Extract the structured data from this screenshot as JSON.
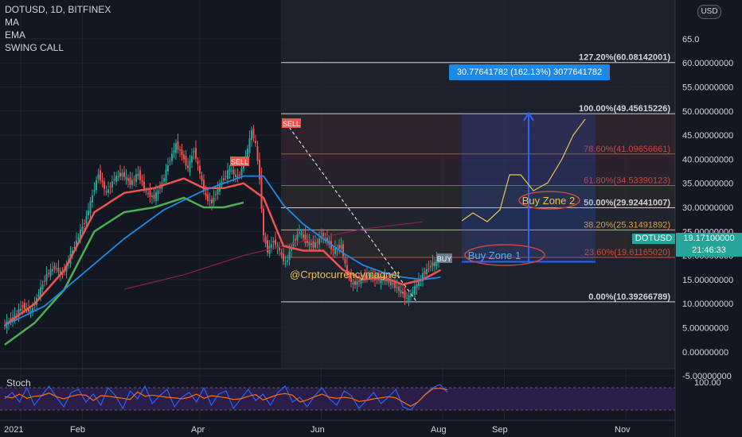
{
  "legend": {
    "symbol": "DOTUSD, 1D, BITFINEX",
    "indicator_1": "MA",
    "indicator_2": "EMA",
    "indicator_3": "SWING CALL"
  },
  "currency_button": "USD",
  "watermark": "@Crptocurrencymagnet",
  "current_price": {
    "symbol": "DOTUSD",
    "value": "19.17100000",
    "countdown": "21:46:33"
  },
  "measure_label": "30.77641782 (162.13%) 3077641782",
  "stoch_label": "Stoch",
  "chart_data": {
    "type": "candlestick",
    "y_axis": {
      "ticks": [
        65,
        60,
        55,
        50,
        45,
        40,
        35,
        30,
        25,
        20,
        15,
        10,
        5,
        0,
        -5
      ],
      "tick_labels": [
        "65.0",
        "60.00000000",
        "55.00000000",
        "50.00000000",
        "45.00000000",
        "40.00000000",
        "35.00000000",
        "30.00000000",
        "25.00000000",
        "20.00000000",
        "15.00000000",
        "10.00000000",
        "5.00000000",
        "0.00000000",
        "-5.00000000"
      ]
    },
    "x_axis": {
      "tick_labels": [
        "2021",
        "Feb",
        "Apr",
        "Jun",
        "Aug",
        "Sep",
        "Nov"
      ],
      "tick_days": [
        0,
        31,
        90,
        151,
        212,
        243,
        304
      ]
    },
    "stoch_axis": {
      "tick_labels": [
        "100.00"
      ]
    },
    "price_series": [
      [
        0,
        5.2
      ],
      [
        5,
        7
      ],
      [
        10,
        9.5
      ],
      [
        14,
        8.2
      ],
      [
        18,
        12
      ],
      [
        22,
        16
      ],
      [
        26,
        17.5
      ],
      [
        30,
        16
      ],
      [
        34,
        20
      ],
      [
        38,
        24
      ],
      [
        42,
        28
      ],
      [
        46,
        34
      ],
      [
        48,
        37
      ],
      [
        52,
        33
      ],
      [
        56,
        36
      ],
      [
        60,
        37
      ],
      [
        64,
        35
      ],
      [
        68,
        37
      ],
      [
        72,
        33
      ],
      [
        76,
        32
      ],
      [
        80,
        35
      ],
      [
        84,
        40
      ],
      [
        87,
        43
      ],
      [
        90,
        41
      ],
      [
        93,
        38
      ],
      [
        96,
        42
      ],
      [
        99,
        37
      ],
      [
        102,
        32
      ],
      [
        105,
        31
      ],
      [
        108,
        34
      ],
      [
        111,
        36
      ],
      [
        114,
        38
      ],
      [
        118,
        36
      ],
      [
        120,
        38
      ],
      [
        123,
        42
      ],
      [
        125,
        46
      ],
      [
        127,
        43
      ],
      [
        129,
        36
      ],
      [
        131,
        24
      ],
      [
        133,
        21
      ],
      [
        136,
        23
      ],
      [
        139,
        21
      ],
      [
        142,
        18
      ],
      [
        145,
        22
      ],
      [
        149,
        25
      ],
      [
        152,
        23
      ],
      [
        156,
        22
      ],
      [
        160,
        24
      ],
      [
        163,
        23
      ],
      [
        166,
        21
      ],
      [
        170,
        22
      ],
      [
        173,
        16
      ],
      [
        176,
        14
      ],
      [
        180,
        15
      ],
      [
        184,
        16
      ],
      [
        188,
        15
      ],
      [
        192,
        15
      ],
      [
        196,
        14
      ],
      [
        200,
        12.5
      ],
      [
        203,
        11
      ],
      [
        205,
        11.8
      ],
      [
        208,
        14
      ],
      [
        211,
        16
      ],
      [
        214,
        17.5
      ],
      [
        217,
        18.5
      ],
      [
        219,
        19.17
      ]
    ],
    "ema_series": [
      [
        0,
        5
      ],
      [
        20,
        9
      ],
      [
        40,
        16
      ],
      [
        60,
        23
      ],
      [
        80,
        29
      ],
      [
        100,
        33
      ],
      [
        120,
        36
      ],
      [
        130,
        36
      ],
      [
        140,
        30
      ],
      [
        150,
        26
      ],
      [
        160,
        23
      ],
      [
        170,
        20
      ],
      [
        180,
        17.5
      ],
      [
        190,
        16
      ],
      [
        200,
        15
      ],
      [
        210,
        14.5
      ],
      [
        219,
        15
      ]
    ],
    "ma_series": [
      [
        0,
        5.5
      ],
      [
        15,
        10
      ],
      [
        30,
        17
      ],
      [
        45,
        29
      ],
      [
        60,
        33
      ],
      [
        75,
        34
      ],
      [
        90,
        36
      ],
      [
        100,
        34
      ],
      [
        110,
        34
      ],
      [
        120,
        35
      ],
      [
        130,
        32
      ],
      [
        140,
        22
      ],
      [
        150,
        21
      ],
      [
        160,
        21
      ],
      [
        170,
        17
      ],
      [
        180,
        15
      ],
      [
        190,
        15.5
      ],
      [
        200,
        14
      ],
      [
        210,
        15
      ],
      [
        219,
        17
      ]
    ],
    "long_ma_series": [
      [
        60,
        13
      ],
      [
        90,
        16
      ],
      [
        120,
        20
      ],
      [
        150,
        23
      ],
      [
        180,
        25.5
      ],
      [
        210,
        27
      ]
    ],
    "fib_levels": [
      {
        "label": "127.20%(60.08142001)",
        "value": 60.08142001
      },
      {
        "label": "100.00%(49.45615226)",
        "value": 49.45615226
      },
      {
        "label": "78.60%(41.09656661)",
        "value": 41.09656661
      },
      {
        "label": "61.80%(34.53390123)",
        "value": 34.53390123
      },
      {
        "label": "50.00%(29.92441007)",
        "value": 29.92441007
      },
      {
        "label": "38.20%(25.31491892)",
        "value": 25.31491892
      },
      {
        "label": "23.60%(19.61165020)",
        "value": 19.6116502
      },
      {
        "label": "0.00%(10.39266789)",
        "value": 10.39266789
      }
    ],
    "annotations": {
      "buy_zone_1": "Buy Zone 1",
      "buy_zone_2": "Buy Zone 2",
      "sell_1": "SELL",
      "sell_2": "SELL",
      "buy": "BUY"
    },
    "stoch_series": [
      50,
      70,
      40,
      85,
      30,
      60,
      90,
      55,
      25,
      70,
      80,
      40,
      65,
      30,
      85,
      60,
      20,
      75,
      50,
      90,
      35,
      60,
      80,
      25,
      55,
      70,
      40,
      85,
      30,
      65,
      75,
      20,
      50,
      80,
      45,
      65,
      30,
      70,
      90,
      40,
      55,
      25,
      60,
      85,
      50,
      30,
      75,
      60,
      20,
      45,
      70,
      35,
      55,
      80,
      25,
      15,
      40,
      65,
      85,
      95,
      70
    ]
  },
  "colors": {
    "background": "#131722",
    "shaded_range": "#1c212c",
    "up_candle": "#26a69a",
    "down_candle": "#ef5350",
    "ema": "#1e88e5",
    "ma": "#ef5350",
    "long_ma": "#8a2050",
    "swing_ma": "#4caf50",
    "fib_white": "#d1d4dc",
    "fib_red": "#c9483f",
    "fib_orange": "#f0a73a",
    "measure": "#2962ff",
    "annotation": "#f0c24a",
    "stoch_band": "#2a1d47"
  }
}
